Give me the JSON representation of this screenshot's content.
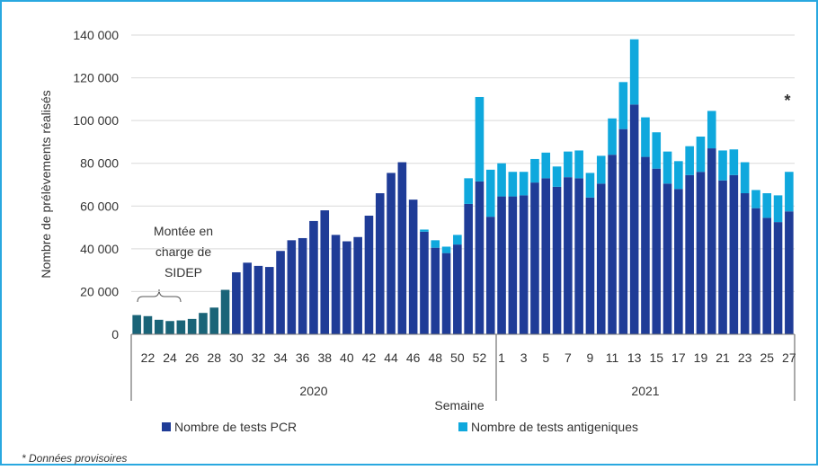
{
  "chart_data": {
    "type": "stacked-bar",
    "y_label": "Nombre de prélèvements réalisés",
    "x_label": "Semaine",
    "x_groups": [
      "2020",
      "2021"
    ],
    "annotation": [
      "Montée en",
      "charge de",
      "SIDEP"
    ],
    "marker": "*",
    "footnote": "* Données provisoires",
    "categories": [
      null,
      "22",
      null,
      "24",
      null,
      "26",
      null,
      "28",
      null,
      "30",
      null,
      "32",
      null,
      "34",
      null,
      "36",
      null,
      "38",
      null,
      "40",
      null,
      "42",
      null,
      "44",
      null,
      "46",
      null,
      "48",
      null,
      "50",
      null,
      "52",
      null,
      "1",
      null,
      "3",
      null,
      "5",
      null,
      "7",
      null,
      "9",
      null,
      "11",
      null,
      "13",
      null,
      "15",
      null,
      "17",
      null,
      "19",
      null,
      "21",
      null,
      "23",
      null,
      "25",
      null,
      "27"
    ],
    "series": [
      {
        "name": "Nombre de tests PCR",
        "color": "#1f3c97",
        "early_color": "#1a6478",
        "early_count": 9,
        "values": [
          9000,
          8500,
          6800,
          6200,
          6500,
          7200,
          10000,
          12500,
          20800,
          29000,
          33500,
          32000,
          31500,
          39000,
          44000,
          45000,
          53000,
          58000,
          46500,
          43500,
          45500,
          55500,
          66000,
          75500,
          80500,
          63000,
          48000,
          40500,
          38000,
          42000,
          61000,
          71500,
          55000,
          64500,
          64500,
          65000,
          71000,
          73000,
          69000,
          73500,
          73000,
          64000,
          70500,
          84000,
          96000,
          107500,
          83000,
          77500,
          70500,
          68000,
          74500,
          76000,
          87000,
          72000,
          74500,
          66000,
          59000,
          54500,
          52500,
          57500
        ]
      },
      {
        "name": "Nombre de tests antigeniques",
        "color": "#0fa8dd",
        "values": [
          0,
          0,
          0,
          0,
          0,
          0,
          0,
          0,
          0,
          0,
          0,
          0,
          0,
          0,
          0,
          0,
          0,
          0,
          0,
          0,
          0,
          0,
          0,
          0,
          0,
          0,
          1000,
          3500,
          3000,
          4500,
          12000,
          39500,
          22000,
          15500,
          11500,
          11000,
          11000,
          12000,
          9500,
          12000,
          13000,
          11500,
          13000,
          17000,
          22000,
          30500,
          18500,
          17000,
          15000,
          13000,
          13500,
          16500,
          17500,
          14000,
          12000,
          14500,
          8500,
          11500,
          12500,
          18500
        ]
      }
    ],
    "ylim": [
      0,
      140000
    ],
    "yticks": [
      0,
      {
        "value": 20000,
        "label": "20 000"
      },
      {
        "value": 40000,
        "label": "40 000"
      },
      {
        "value": 60000,
        "label": "60 000"
      },
      {
        "value": 80000,
        "label": "80 000"
      },
      {
        "value": 100000,
        "label": "100 000"
      },
      {
        "value": 120000,
        "label": "120 000"
      },
      {
        "value": 140000,
        "label": "140 000"
      }
    ],
    "grid": true
  }
}
